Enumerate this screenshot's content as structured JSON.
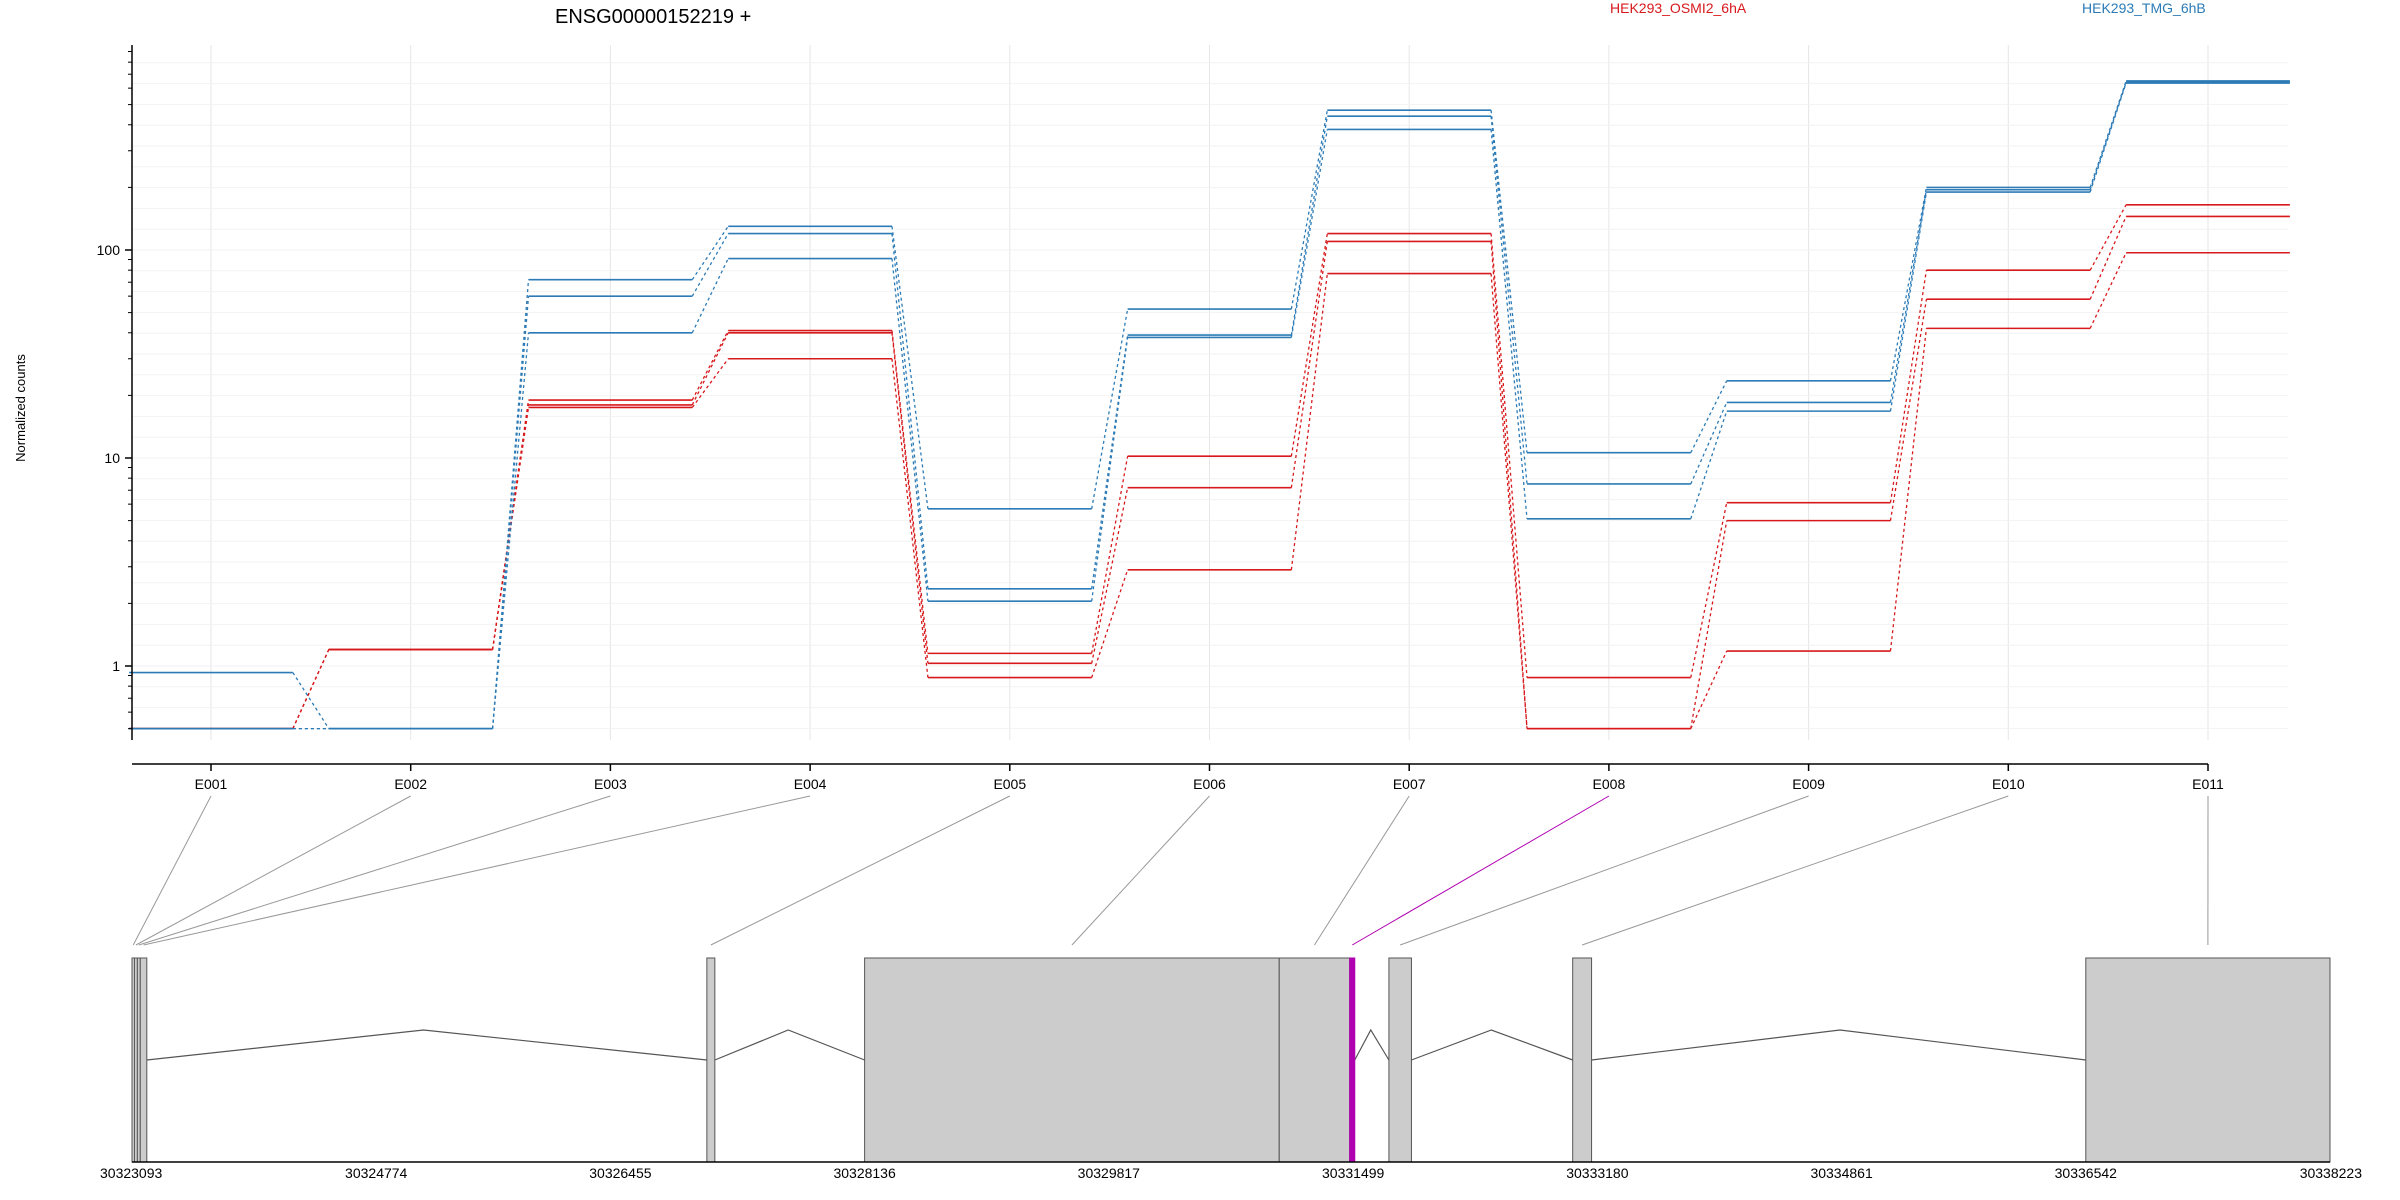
{
  "chart_data": {
    "type": "line",
    "title": "ENSG00000152219 +",
    "xlabel": "",
    "ylabel": "Normalized counts",
    "y_scale": "log",
    "y_ticks": [
      1,
      10,
      100
    ],
    "y_tick_labels": [
      "1",
      "10",
      "100"
    ],
    "categories": [
      "E001",
      "E002",
      "E003",
      "E004",
      "E005",
      "E006",
      "E007",
      "E008",
      "E009",
      "E010",
      "E011"
    ],
    "legend": {
      "placement": "top",
      "entries": [
        {
          "label": "HEK293_OSMI2_6hA",
          "color": "#d7191c"
        },
        {
          "label": "HEK293_TMG_6hB",
          "color": "#2c7bb6"
        }
      ]
    },
    "grid": true,
    "series": [
      {
        "group": "HEK293_OSMI2_6hA",
        "color": "#d7191c",
        "values": [
          0.5,
          1.2,
          19,
          41,
          1.15,
          10.2,
          120,
          0.88,
          6.1,
          80,
          165
        ]
      },
      {
        "group": "HEK293_OSMI2_6hA",
        "color": "#d7191c",
        "values": [
          0.5,
          1.2,
          18,
          40,
          1.03,
          7.2,
          110,
          0.5,
          5.0,
          58,
          145
        ]
      },
      {
        "group": "HEK293_OSMI2_6hA",
        "color": "#d7191c",
        "values": [
          0.5,
          1.2,
          17.5,
          30,
          0.88,
          2.9,
          77,
          0.5,
          1.18,
          42,
          97
        ]
      },
      {
        "group": "HEK293_TMG_6hB",
        "color": "#2c7bb6",
        "values": [
          0.93,
          0.5,
          72,
          130,
          5.7,
          52,
          470,
          10.6,
          23.5,
          200,
          650
        ]
      },
      {
        "group": "HEK293_TMG_6hB",
        "color": "#2c7bb6",
        "values": [
          0.5,
          0.5,
          60,
          120,
          2.35,
          39,
          440,
          7.5,
          18.5,
          195,
          640
        ]
      },
      {
        "group": "HEK293_TMG_6hB",
        "color": "#2c7bb6",
        "values": [
          0.5,
          0.5,
          40,
          91,
          2.05,
          38,
          380,
          5.1,
          16.8,
          190,
          635
        ]
      }
    ],
    "gene_model": {
      "genomic_start": 30323093,
      "genomic_end": 30338223,
      "coordinate_ticks": [
        30323093,
        30324774,
        30326455,
        30328136,
        30329817,
        30331499,
        30333180,
        30334861,
        30336542,
        30338223
      ],
      "coordinate_labels": [
        "30323093",
        "30324774",
        "30326455",
        "30328136",
        "30329817",
        "30331499",
        "30333180",
        "30334861",
        "30336542",
        "30338223"
      ],
      "exons": [
        {
          "id": "E001",
          "start": 30323093,
          "end": 30323110
        },
        {
          "id": "E002",
          "start": 30323110,
          "end": 30323130
        },
        {
          "id": "E003",
          "start": 30323130,
          "end": 30323150
        },
        {
          "id": "E004",
          "start": 30323150,
          "end": 30323195
        },
        {
          "id": "E005",
          "start": 30327050,
          "end": 30327105
        },
        {
          "id": "E006",
          "start": 30328136,
          "end": 30330990
        },
        {
          "id": "E007",
          "start": 30330990,
          "end": 30331475
        },
        {
          "id": "E008",
          "start": 30331475,
          "end": 30331510,
          "highlight": true
        },
        {
          "id": "E009",
          "start": 30331745,
          "end": 30331900
        },
        {
          "id": "E010",
          "start": 30333010,
          "end": 30333140
        },
        {
          "id": "E011",
          "start": 30336542,
          "end": 30338223
        }
      ],
      "introns": [
        {
          "from": 30323195,
          "to": 30327050,
          "peak": 30325100
        },
        {
          "from": 30327105,
          "to": 30328136,
          "peak": 30327610
        },
        {
          "from": 30331510,
          "to": 30331745,
          "peak": 30331620
        },
        {
          "from": 30331900,
          "to": 30333010,
          "peak": 30332450
        },
        {
          "from": 30333140,
          "to": 30336542,
          "peak": 30334850
        }
      ]
    }
  },
  "colors": {
    "axis": "#000000",
    "grid": "#e6e6e6",
    "exon_fill": "#cccccc",
    "exon_stroke": "#555555",
    "connector": "#999999",
    "highlight": "#b000b0"
  }
}
